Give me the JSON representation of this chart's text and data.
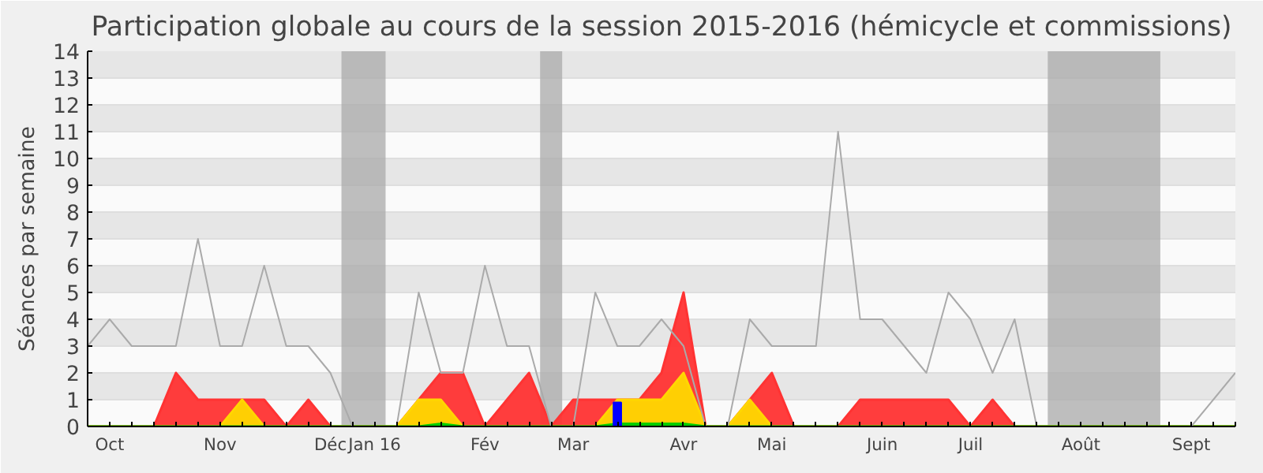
{
  "chart_data": {
    "type": "area",
    "title": "Participation globale au cours de la session 2015-2016 (hémicycle et commissions)",
    "ylabel": "Séances par semaine",
    "categories": [
      null,
      "Oct",
      null,
      null,
      null,
      null,
      "Nov",
      null,
      null,
      null,
      null,
      "Déc",
      null,
      "Jan 16",
      null,
      null,
      null,
      null,
      "Fév",
      null,
      null,
      null,
      "Mar",
      null,
      null,
      null,
      null,
      "Avr",
      null,
      null,
      null,
      "Mai",
      null,
      null,
      null,
      null,
      "Juin",
      null,
      null,
      null,
      "Juil",
      null,
      null,
      null,
      null,
      "Août",
      null,
      null,
      null,
      null,
      "Sept",
      null,
      null
    ],
    "ylim": [
      0,
      14
    ],
    "yticks": [
      0,
      1,
      2,
      3,
      4,
      5,
      6,
      7,
      8,
      9,
      10,
      11,
      12,
      13,
      14
    ],
    "grid": "y",
    "series": [
      {
        "type": "line",
        "color": "#aaaaaa",
        "values": [
          3,
          4,
          3,
          3,
          3,
          7,
          3,
          3,
          6,
          3,
          3,
          2,
          0,
          0,
          0,
          5,
          2,
          2,
          6,
          3,
          3,
          0,
          0,
          5,
          3,
          3,
          4,
          3,
          0,
          0,
          4,
          3,
          3,
          3,
          11,
          4,
          4,
          3,
          2,
          5,
          4,
          2,
          4,
          0,
          0,
          0,
          0,
          0,
          0,
          0,
          0,
          1,
          2
        ]
      },
      {
        "color": "#ff3333",
        "values": [
          0,
          0,
          0,
          0,
          2,
          1,
          1,
          1,
          1,
          0,
          1,
          0,
          0,
          0,
          0,
          1,
          2,
          2,
          0,
          1,
          2,
          0,
          1,
          1,
          1,
          1,
          2,
          5,
          0,
          0,
          1,
          2,
          0,
          0,
          0,
          1,
          1,
          1,
          1,
          1,
          0,
          1,
          0,
          0,
          0,
          0,
          0,
          0,
          0,
          0,
          0,
          0,
          0
        ]
      },
      {
        "color": "#ffd700",
        "values": [
          0,
          0,
          0,
          0,
          0,
          0,
          0,
          1,
          0,
          0,
          0,
          0,
          0,
          0,
          0,
          1,
          1,
          0,
          0,
          0,
          0,
          0,
          0,
          0,
          1,
          1,
          1,
          2,
          0,
          0,
          1,
          0,
          0,
          0,
          0,
          0,
          0,
          0,
          0,
          0,
          0,
          0,
          0,
          0,
          0,
          0,
          0,
          0,
          0,
          0,
          0,
          0,
          0
        ]
      },
      {
        "color": "#00cc00",
        "values": [
          0,
          0,
          0,
          0,
          0,
          0,
          0,
          0,
          0,
          0,
          0,
          0,
          0,
          0,
          0,
          0,
          0.1,
          0,
          0,
          0,
          0,
          0,
          0,
          0,
          0.1,
          0.1,
          0.1,
          0.1,
          0,
          0,
          0,
          0,
          0,
          0,
          0,
          0,
          0,
          0,
          0,
          0,
          0,
          0,
          0,
          0,
          0,
          0,
          0,
          0,
          0,
          0,
          0,
          0,
          0
        ]
      },
      {
        "type": "bar",
        "color": "#0000ff",
        "values": [
          null,
          null,
          null,
          null,
          null,
          null,
          null,
          null,
          null,
          null,
          null,
          null,
          null,
          null,
          null,
          null,
          null,
          null,
          null,
          null,
          null,
          null,
          null,
          null,
          0.9,
          null,
          null,
          null,
          null,
          null,
          null,
          null,
          null,
          null,
          null,
          null,
          null,
          null,
          null,
          null,
          null,
          null,
          null,
          null,
          null,
          null,
          null,
          null,
          null,
          null,
          null,
          null,
          null
        ]
      }
    ]
  }
}
